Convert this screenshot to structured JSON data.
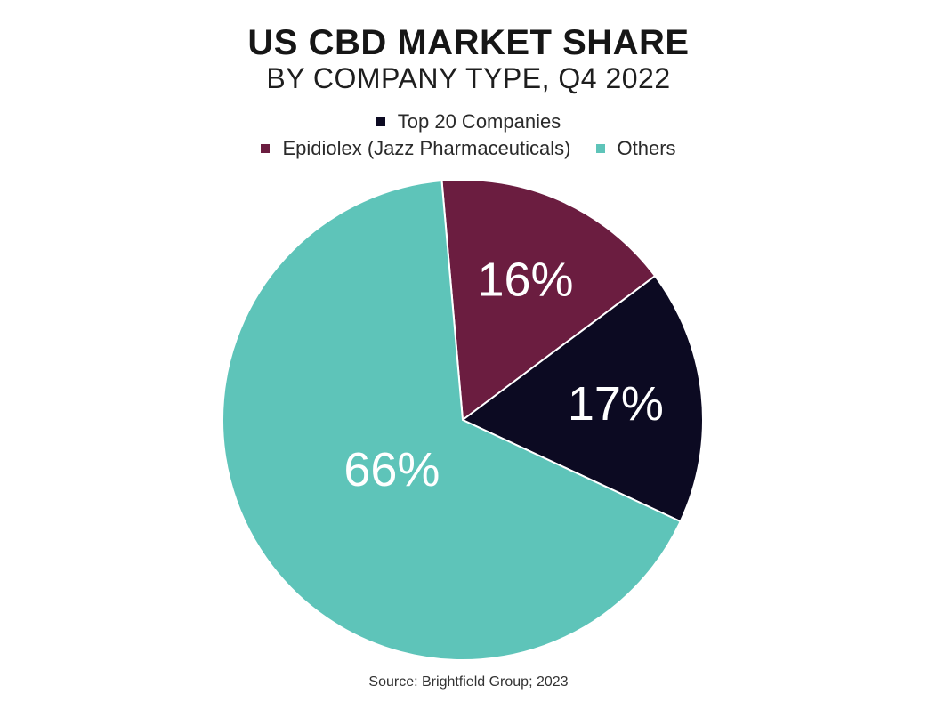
{
  "chart_data": {
    "type": "pie",
    "title": "US CBD MARKET SHARE",
    "subtitle": "BY COMPANY TYPE, Q4 2022",
    "categories": [
      "Top 20 Companies",
      "Epidiolex (Jazz Pharmaceuticals)",
      "Others"
    ],
    "values": [
      17,
      16,
      66
    ],
    "labels": [
      "17%",
      "16%",
      "66%"
    ],
    "colors": [
      "#0c0a22",
      "#6b1d40",
      "#5ec4b9"
    ],
    "legend_position": "top",
    "source": "Source: Brightfield Group; 2023"
  }
}
